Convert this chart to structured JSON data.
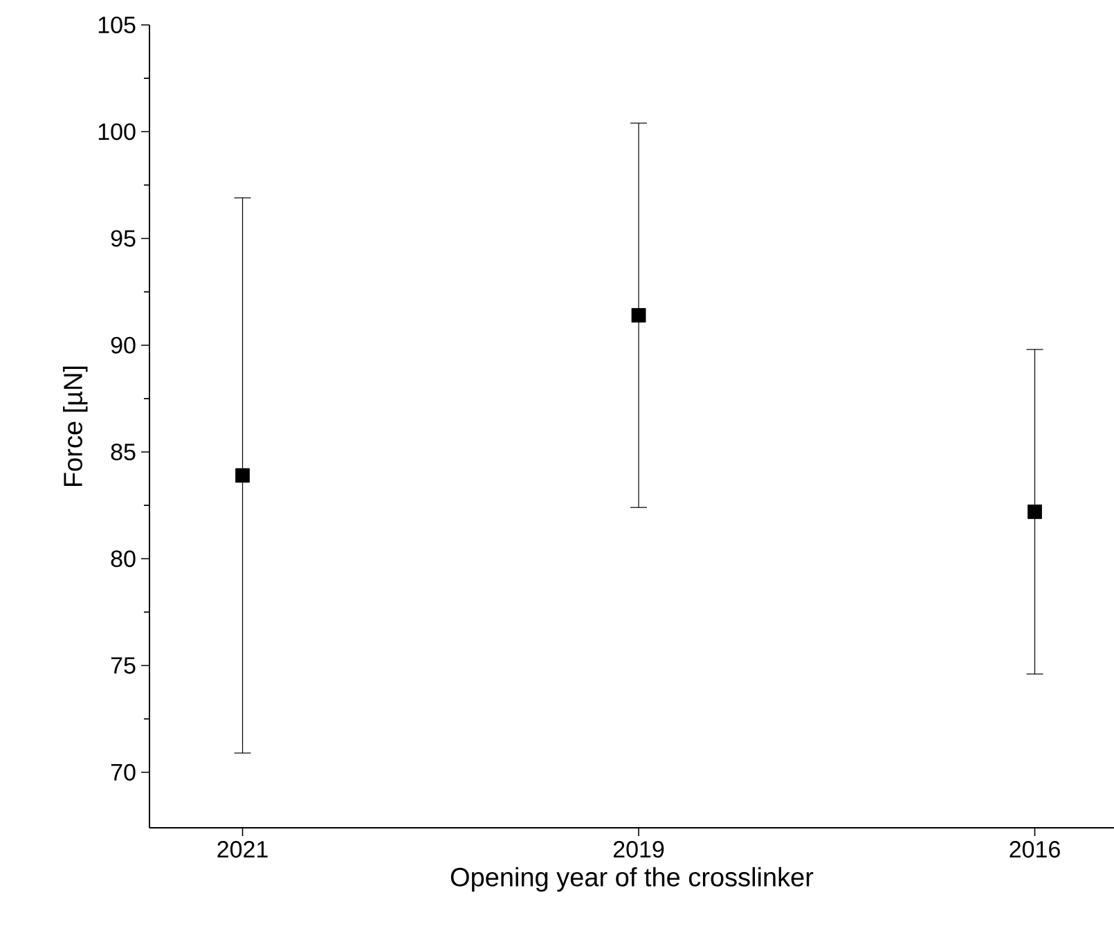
{
  "chart_data": {
    "type": "scatter",
    "xlabel": "Opening year of the crosslinker",
    "ylabel": "Force [µN]",
    "categories": [
      "2021",
      "2019",
      "2016"
    ],
    "values": [
      83.9,
      91.4,
      82.2
    ],
    "errors": [
      13,
      9,
      7.6
    ],
    "color": "#000000",
    "marker": "square",
    "ylim": [
      67.4,
      105
    ],
    "yticks": [
      70,
      75,
      80,
      85,
      90,
      95,
      100,
      105
    ]
  }
}
